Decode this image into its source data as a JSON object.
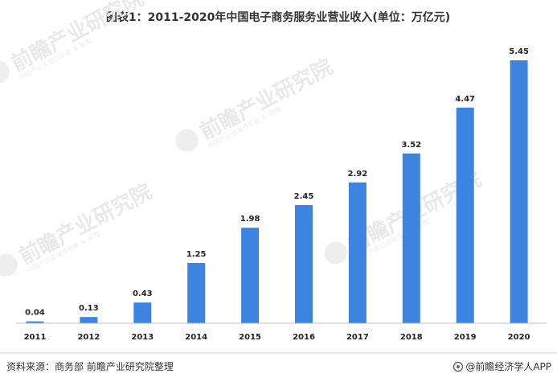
{
  "title": "图表1：2011-2020年中国电子商务服务业营业收入(单位：万亿元)",
  "footer": {
    "source": "资料来源：商务部 前瞻产业研究院整理",
    "brand": "@前瞻经济学人APP"
  },
  "watermark": {
    "text": "前瞻产业研究院",
    "sub": "中国产业咨询领导者 ＆ 前瞻"
  },
  "colors": {
    "bar": "#3d84e0",
    "axis": "#bfbfbf",
    "watermark": "#e9e9e9"
  },
  "chart_data": {
    "type": "bar",
    "title": "图表1：2011-2020年中国电子商务服务业营业收入(单位：万亿元)",
    "xlabel": "",
    "ylabel": "",
    "categories": [
      "2011",
      "2012",
      "2013",
      "2014",
      "2015",
      "2016",
      "2017",
      "2018",
      "2019",
      "2020"
    ],
    "values": [
      0.04,
      0.13,
      0.43,
      1.25,
      1.98,
      2.45,
      2.92,
      3.52,
      4.47,
      5.45
    ],
    "value_labels": [
      "0.04",
      "0.13",
      "0.43",
      "1.25",
      "1.98",
      "2.45",
      "2.92",
      "3.52",
      "4.47",
      "5.45"
    ],
    "ylim": [
      0,
      5.75
    ],
    "grid": false,
    "legend": "none",
    "data_labels": true
  }
}
